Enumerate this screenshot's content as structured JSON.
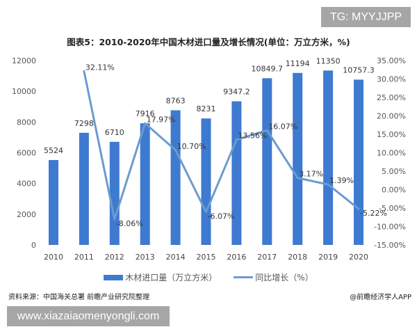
{
  "watermark_top": "TG: MYYJJPP",
  "watermark_bottom": "www.xiazaiaomenyongli.com",
  "source": "资料来源：中国海关总署 前瞻产业研究院整理",
  "credit": "@前瞻经济学人APP",
  "chart_data": {
    "type": "bar+line",
    "title": "图表5：2010-2020年中国木材进口量及增长情况(单位：万立方米，%)",
    "categories": [
      "2010",
      "2011",
      "2012",
      "2013",
      "2014",
      "2015",
      "2016",
      "2017",
      "2018",
      "2019",
      "2020"
    ],
    "series": [
      {
        "name": "木材进口量（万立方米）",
        "type": "bar",
        "axis": "left",
        "color": "#3e7ad0",
        "values": [
          5524,
          7298,
          6710,
          7916,
          8763,
          8231,
          9347.2,
          10849.7,
          11194,
          11350,
          10757.3
        ],
        "labels": [
          "5524",
          "7298",
          "6710",
          "7916",
          "8763",
          "8231",
          "9347.2",
          "10849.7",
          "11194",
          "11350",
          "10757.3"
        ]
      },
      {
        "name": "同比增长（%）",
        "type": "line",
        "axis": "right",
        "color": "#6b9bd0",
        "values": [
          null,
          32.11,
          -8.06,
          17.97,
          10.7,
          -6.07,
          13.56,
          16.07,
          3.17,
          1.39,
          -5.22
        ],
        "labels": [
          "",
          "32.11%",
          "-8.06%",
          "17.97%",
          "10.70%",
          "-6.07%",
          "13.56%",
          "16.07%",
          "3.17%",
          "1.39%",
          "-5.22%"
        ]
      }
    ],
    "left_axis": {
      "range": [
        0,
        12000
      ],
      "ticks": [
        "0",
        "2000",
        "4000",
        "6000",
        "8000",
        "10000",
        "12000"
      ]
    },
    "right_axis": {
      "range": [
        -15,
        35
      ],
      "ticks": [
        "-15.00%",
        "-10.00%",
        "-5.00%",
        "0.00%",
        "5.00%",
        "10.00%",
        "15.00%",
        "20.00%",
        "25.00%",
        "30.00%",
        "35.00%"
      ]
    },
    "grid": false,
    "legend": "bottom"
  }
}
